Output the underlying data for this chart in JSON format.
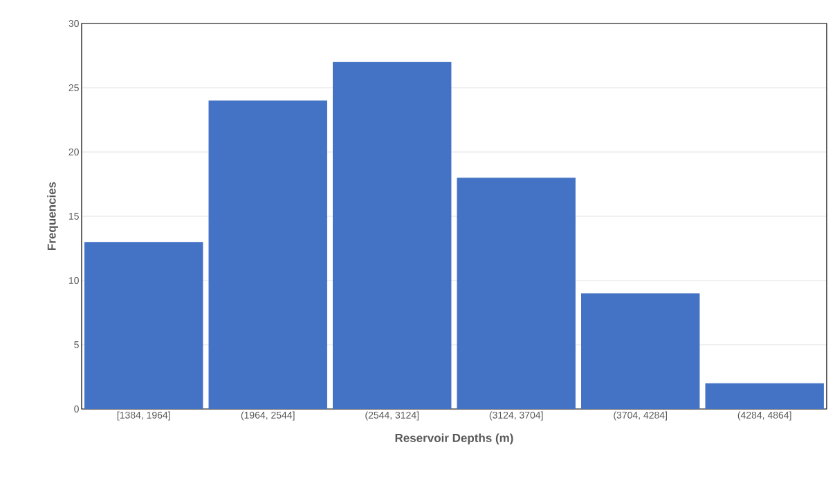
{
  "chart_data": {
    "type": "bar",
    "xlabel": "Reservoir Depths (m)",
    "ylabel": "Frequencies",
    "categories": [
      "[1384, 1964]",
      "(1964, 2544]",
      "(2544, 3124]",
      "(3124, 3704]",
      "(3704, 4284]",
      "(4284, 4864]"
    ],
    "values": [
      13,
      24,
      27,
      18,
      9,
      2
    ],
    "color": "#4472c4",
    "ylim": [
      0,
      30
    ],
    "yticks": [
      0,
      5,
      10,
      15,
      20,
      25,
      30
    ],
    "grid": "y"
  }
}
